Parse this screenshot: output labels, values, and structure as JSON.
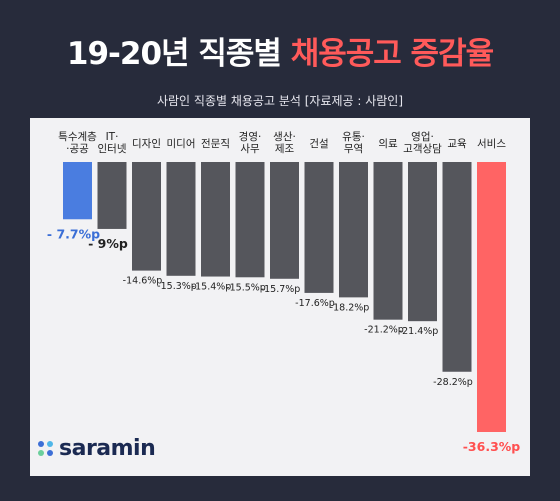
{
  "header": {
    "title_main": "19-20년 직종별 ",
    "title_accent": "채용공고 증감율",
    "subtitle": "사람인 직종별 채용공고 분석 [자료제공 : 사람인]"
  },
  "logo": {
    "text": "saramin",
    "dot_colors": [
      "#3d6fd6",
      "#4fb6e8",
      "#6bcf9c",
      "#3d6fd6"
    ]
  },
  "colors": {
    "highlight_low": "#4a7de0",
    "highlight_high": "#ff6464",
    "bar": "#55565c",
    "label_low": "#3a6ed6",
    "label_high": "#ff5050",
    "text": "#222222"
  },
  "chart_data": {
    "type": "bar",
    "title": "채용공고 증감율",
    "categories": [
      [
        "특수계층",
        "·공공"
      ],
      [
        "IT·",
        "인터넷"
      ],
      [
        "디자인"
      ],
      [
        "미디어"
      ],
      [
        "전문직"
      ],
      [
        "경영·",
        "사무"
      ],
      [
        "생산·",
        "제조"
      ],
      [
        "건설"
      ],
      [
        "유통·",
        "무역"
      ],
      [
        "의료"
      ],
      [
        "영업·",
        "고객상담"
      ],
      [
        "교육"
      ],
      [
        "서비스"
      ]
    ],
    "values": [
      -7.7,
      -9,
      -14.6,
      -15.3,
      -15.4,
      -15.5,
      -15.7,
      -17.6,
      -18.2,
      -21.2,
      -21.4,
      -28.2,
      -36.3
    ],
    "value_labels": [
      "- 7.7%p",
      "- 9%p",
      "-14.6%p",
      "-15.3%p",
      "-15.4%p",
      "-15.5%p",
      "-15.7%p",
      "-17.6%p",
      "-18.2%p",
      "-21.2%p",
      "-21.4%p",
      "-28.2%p",
      "-36.3%p"
    ],
    "ylim": [
      -36.3,
      0
    ]
  }
}
